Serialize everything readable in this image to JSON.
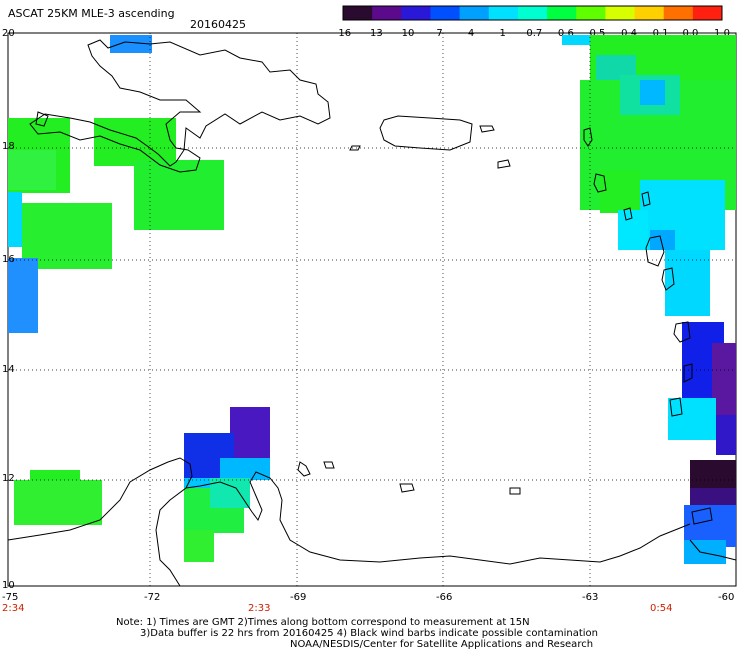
{
  "header": {
    "title": "ASCAT 25KM MLE-3 ascending",
    "date": "20160425"
  },
  "colorbar": {
    "labels": [
      "-16",
      "-13",
      "-10",
      "-7",
      "-4",
      "-1",
      "-0.7",
      "-0.6",
      "-0.5",
      "-0.4",
      "-0.1",
      "0.0",
      "1.0"
    ],
    "colors": [
      "#2a0a2e",
      "#5a0a8a",
      "#2a18d8",
      "#0050ff",
      "#00a0ff",
      "#00e0ff",
      "#00ffd0",
      "#00ff40",
      "#60ff00",
      "#d8ff00",
      "#ffd000",
      "#ff7000",
      "#ff2010"
    ]
  },
  "map": {
    "lat_labels": [
      "20",
      "18",
      "16",
      "14",
      "12",
      "10"
    ],
    "lon_labels": [
      "-75",
      "-72",
      "-69",
      "-66",
      "-63",
      "-60"
    ],
    "time_labels": [
      "2:34",
      "2:33",
      "0:54"
    ]
  },
  "notes": {
    "line1": "Note: 1) Times are GMT 2)Times along bottom correspond to measurement at 15N",
    "line2": "3)Data buffer is 22 hrs from 20160425 4) Black wind barbs indicate possible contamination",
    "line3": "NOAA/NESDIS/Center for Satellite Applications and Research"
  }
}
